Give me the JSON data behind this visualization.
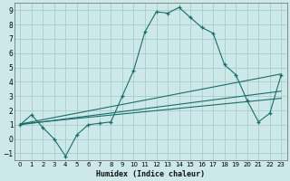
{
  "xlabel": "Humidex (Indice chaleur)",
  "bg_color": "#cce8e8",
  "grid_color": "#aacccc",
  "line_color": "#1a6e6a",
  "xlim": [
    -0.5,
    23.5
  ],
  "ylim": [
    -1.5,
    9.5
  ],
  "xticks": [
    0,
    1,
    2,
    3,
    4,
    5,
    6,
    7,
    8,
    9,
    10,
    11,
    12,
    13,
    14,
    15,
    16,
    17,
    18,
    19,
    20,
    21,
    22,
    23
  ],
  "yticks": [
    -1,
    0,
    1,
    2,
    3,
    4,
    5,
    6,
    7,
    8,
    9
  ],
  "series1_x": [
    0,
    1,
    2,
    3,
    4,
    5,
    6,
    7,
    8,
    9,
    10,
    11,
    12,
    13,
    14,
    15,
    16,
    17,
    18,
    19,
    20,
    21,
    22,
    23
  ],
  "series1_y": [
    1.0,
    1.7,
    0.8,
    0.0,
    -1.2,
    0.3,
    1.0,
    1.1,
    1.2,
    3.0,
    4.8,
    7.5,
    8.9,
    8.8,
    9.2,
    8.5,
    7.8,
    7.4,
    5.2,
    4.5,
    2.7,
    1.2,
    1.8,
    4.5
  ],
  "line1_x0": 0,
  "line1_y0": 1.05,
  "line1_x1": 23,
  "line1_y1": 4.55,
  "line2_x0": 0,
  "line2_y0": 1.0,
  "line2_x1": 23,
  "line2_y1": 3.35,
  "line3_x0": 0,
  "line3_y0": 1.05,
  "line3_x1": 23,
  "line3_y1": 2.85
}
